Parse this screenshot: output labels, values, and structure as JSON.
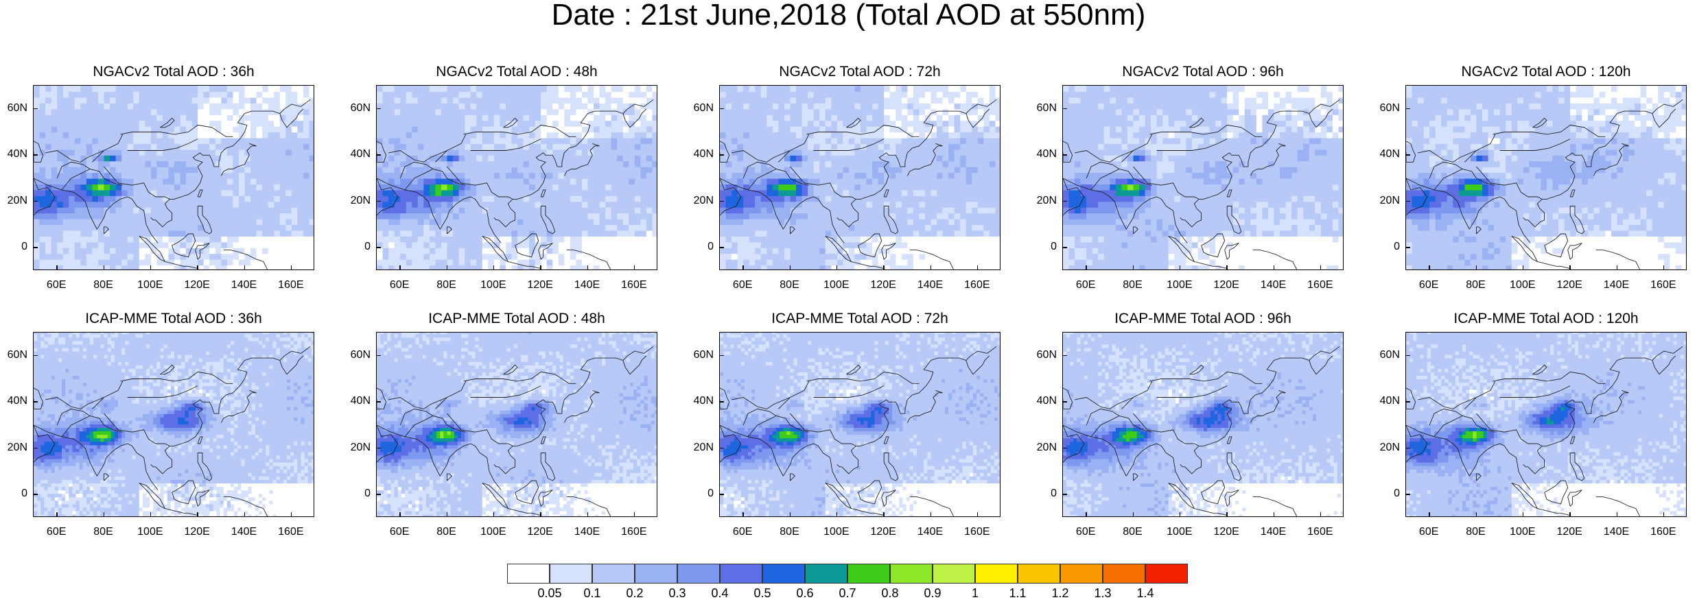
{
  "title": "Date : 21st June,2018 (Total AOD at 550nm)",
  "y_axis_labels": [
    "60N",
    "40N",
    "20N",
    "0"
  ],
  "x_axis_labels": [
    "60E",
    "80E",
    "100E",
    "120E",
    "140E",
    "160E"
  ],
  "map_extent": {
    "lon": [
      50,
      170
    ],
    "lat": [
      -10,
      70
    ]
  },
  "panels": [
    {
      "title": "NGACv2 Total AOD : 36h",
      "model": "NGACv2",
      "lead_hours": 36
    },
    {
      "title": "NGACv2 Total AOD : 48h",
      "model": "NGACv2",
      "lead_hours": 48
    },
    {
      "title": "NGACv2 Total AOD : 72h",
      "model": "NGACv2",
      "lead_hours": 72
    },
    {
      "title": "NGACv2 Total AOD : 96h",
      "model": "NGACv2",
      "lead_hours": 96
    },
    {
      "title": "NGACv2 Total AOD : 120h",
      "model": "NGACv2",
      "lead_hours": 120
    },
    {
      "title": "ICAP-MME Total AOD : 36h",
      "model": "ICAP-MME",
      "lead_hours": 36
    },
    {
      "title": "ICAP-MME Total AOD : 48h",
      "model": "ICAP-MME",
      "lead_hours": 48
    },
    {
      "title": "ICAP-MME Total AOD : 72h",
      "model": "ICAP-MME",
      "lead_hours": 72
    },
    {
      "title": "ICAP-MME Total AOD : 96h",
      "model": "ICAP-MME",
      "lead_hours": 96
    },
    {
      "title": "ICAP-MME Total AOD : 120h",
      "model": "ICAP-MME",
      "lead_hours": 120
    }
  ],
  "colorbar": {
    "labels": [
      "0.05",
      "0.1",
      "0.2",
      "0.3",
      "0.4",
      "0.5",
      "0.6",
      "0.7",
      "0.8",
      "0.9",
      "1",
      "1.1",
      "1.2",
      "1.3",
      "1.4"
    ],
    "colors": [
      "#ffffff",
      "#d6e2fb",
      "#b7c9f7",
      "#9ab2f3",
      "#7d98ef",
      "#5e6fe6",
      "#1d66e0",
      "#0d9a96",
      "#3dcc1a",
      "#8ee82a",
      "#bff046",
      "#fff000",
      "#fbc400",
      "#f99a00",
      "#f56e00",
      "#f02000"
    ]
  }
}
